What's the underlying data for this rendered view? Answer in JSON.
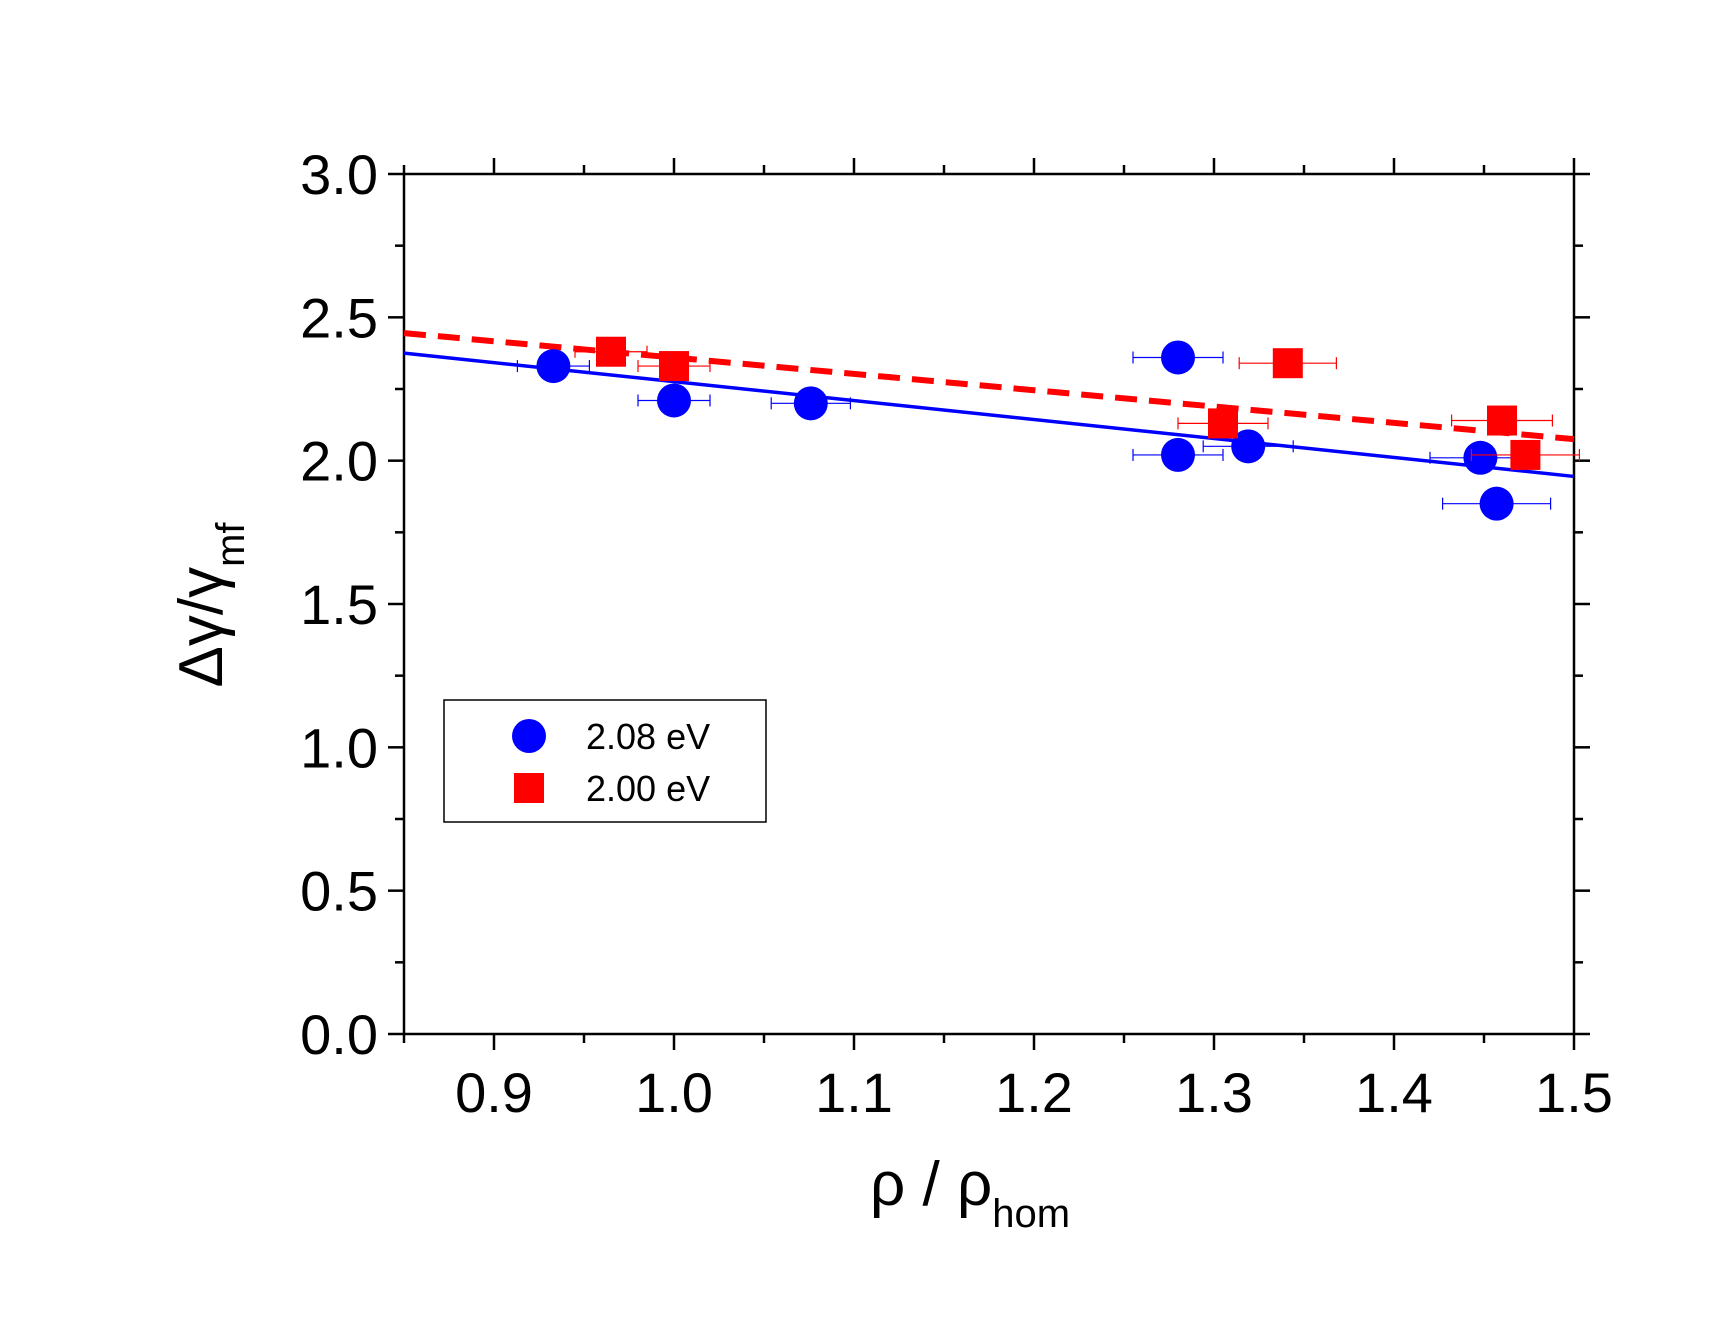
{
  "chart_data": {
    "type": "scatter",
    "xlabel": "ρ / ρ",
    "xlabel_subscript": "hom",
    "ylabel": "Δγ/γ",
    "ylabel_subscript": "mf",
    "xlim": [
      0.85,
      1.5
    ],
    "ylim": [
      0.0,
      3.0
    ],
    "xticks": [
      0.9,
      1.0,
      1.1,
      1.2,
      1.3,
      1.4,
      1.5
    ],
    "xtick_labels": [
      "0.9",
      "1.0",
      "1.1",
      "1.2",
      "1.3",
      "1.4",
      "1.5"
    ],
    "yticks": [
      0.0,
      0.5,
      1.0,
      1.5,
      2.0,
      2.5,
      3.0
    ],
    "ytick_labels": [
      "0.0",
      "0.5",
      "1.0",
      "1.5",
      "2.0",
      "2.5",
      "3.0"
    ],
    "grid": false,
    "legend_position": "center-left",
    "series": [
      {
        "name": "2.08 eV",
        "marker": "circle",
        "color": "#0000ff",
        "points": [
          {
            "x": 0.933,
            "y": 2.33,
            "xerr": 0.02,
            "yerr": 0.035
          },
          {
            "x": 1.0,
            "y": 2.21,
            "xerr": 0.02,
            "yerr": 0.035
          },
          {
            "x": 1.076,
            "y": 2.2,
            "xerr": 0.022,
            "yerr": 0.035
          },
          {
            "x": 1.28,
            "y": 2.36,
            "xerr": 0.025,
            "yerr": 0.035
          },
          {
            "x": 1.28,
            "y": 2.02,
            "xerr": 0.025,
            "yerr": 0.035
          },
          {
            "x": 1.319,
            "y": 2.05,
            "xerr": 0.025,
            "yerr": 0.035
          },
          {
            "x": 1.448,
            "y": 2.01,
            "xerr": 0.028,
            "yerr": 0.035
          },
          {
            "x": 1.457,
            "y": 1.85,
            "xerr": 0.03,
            "yerr": 0.035
          }
        ],
        "fit": {
          "style": "solid",
          "x": [
            0.85,
            1.5
          ],
          "y": [
            2.375,
            1.945
          ]
        }
      },
      {
        "name": "2.00 eV",
        "marker": "square",
        "color": "#ff0000",
        "points": [
          {
            "x": 0.965,
            "y": 2.38,
            "xerr": 0.02,
            "yerr": 0.035
          },
          {
            "x": 1.0,
            "y": 2.33,
            "xerr": 0.02,
            "yerr": 0.035
          },
          {
            "x": 1.305,
            "y": 2.13,
            "xerr": 0.025,
            "yerr": 0.035
          },
          {
            "x": 1.341,
            "y": 2.34,
            "xerr": 0.027,
            "yerr": 0.035
          },
          {
            "x": 1.46,
            "y": 2.14,
            "xerr": 0.028,
            "yerr": 0.035
          },
          {
            "x": 1.473,
            "y": 2.02,
            "xerr": 0.03,
            "yerr": 0.035
          }
        ],
        "fit": {
          "style": "dashed",
          "x": [
            0.85,
            1.5
          ],
          "y": [
            2.445,
            2.075
          ]
        }
      }
    ],
    "legend": {
      "entries": [
        {
          "label": "2.08 eV",
          "marker": "circle",
          "color": "#0000ff"
        },
        {
          "label": "2.00 eV",
          "marker": "square",
          "color": "#ff0000"
        }
      ]
    }
  }
}
